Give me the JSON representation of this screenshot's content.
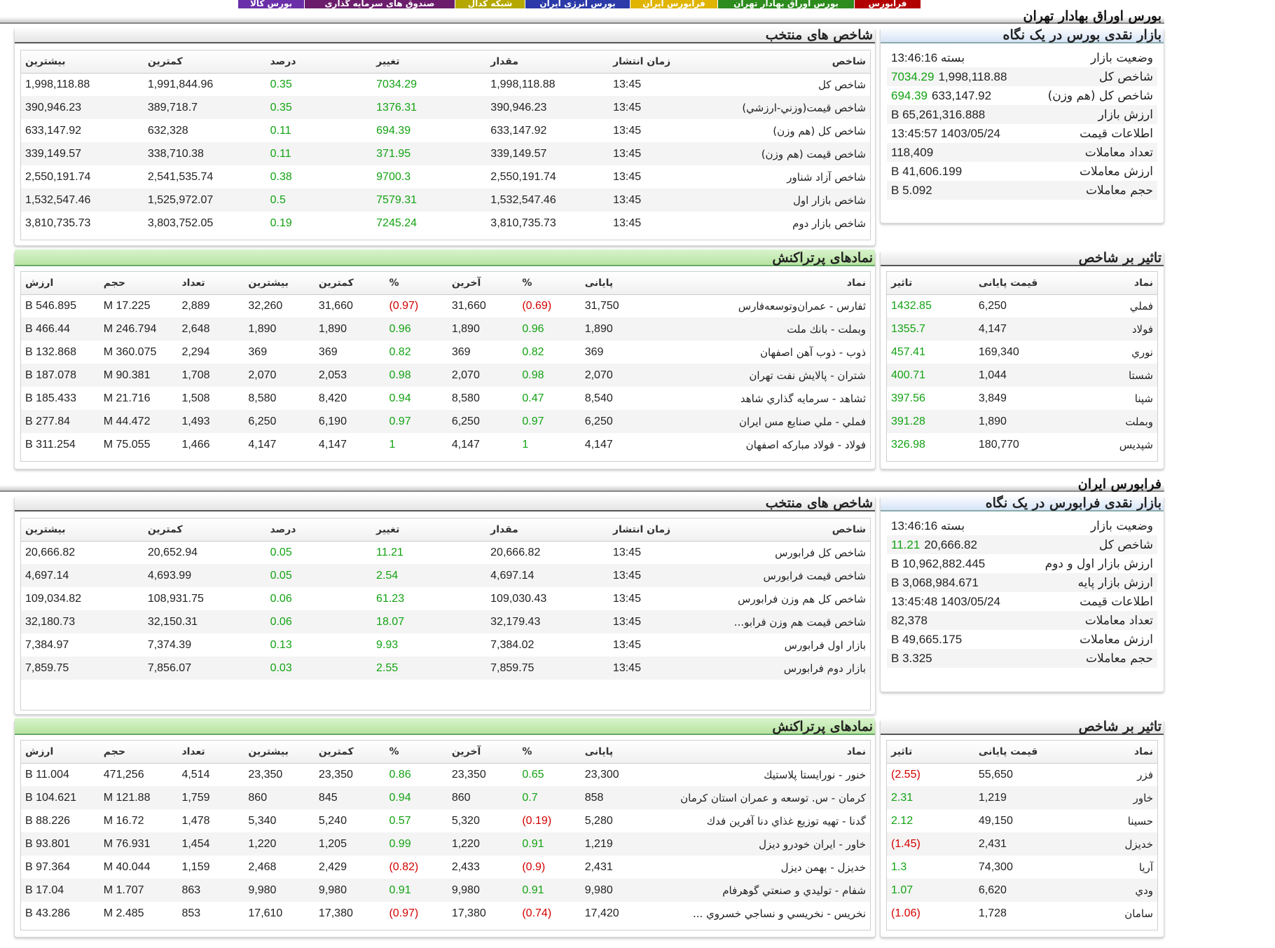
{
  "top_tabs": [
    {
      "label": "فرابورس",
      "color": "#b30000"
    },
    {
      "label": "بورس اوراق بهادار تهران",
      "color": "#2e8b1e"
    },
    {
      "label": "فرابورس ایران",
      "color": "#e0b400"
    },
    {
      "label": "بورس انرژی ایران",
      "color": "#2b3aa8"
    },
    {
      "label": "شبکه کدال",
      "color": "#b5a800"
    },
    {
      "label": "صندوق های سرمایه گذاری",
      "color": "#6b1d6b"
    },
    {
      "label": "بورس کالا",
      "color": "#6a2fa8"
    }
  ],
  "tse": {
    "title": "بورس اوراق بهادار تهران",
    "glance": {
      "title": "بازار نقدی بورس در یک نگاه",
      "rows": [
        {
          "label": "وضعیت بازار",
          "value": "بسته 13:46:16",
          "change": ""
        },
        {
          "label": "شاخص کل",
          "value": "1,998,118.88",
          "change": "7034.29"
        },
        {
          "label": "شاخص کل (هم وزن)",
          "value": "633,147.92",
          "change": "694.39"
        },
        {
          "label": "ارزش بازار",
          "value": "65,261,316.888 B",
          "change": ""
        },
        {
          "label": "اطلاعات قیمت",
          "value": "1403/05/24 13:45:57",
          "change": ""
        },
        {
          "label": "تعداد معاملات",
          "value": "118,409",
          "change": ""
        },
        {
          "label": "ارزش معاملات",
          "value": "41,606.199 B",
          "change": ""
        },
        {
          "label": "حجم معاملات",
          "value": "5.092 B",
          "change": ""
        }
      ]
    },
    "indices": {
      "title": "شاخص های منتخب",
      "headers": [
        "شاخص",
        "زمان انتشار",
        "مقدار",
        "تغییر",
        "درصد",
        "کمترین",
        "بیشترین"
      ],
      "rows": [
        [
          "شاخص کل",
          "13:45",
          "1,998,118.88",
          "7034.29",
          "0.35",
          "1,991,844.96",
          "1,998,118.88"
        ],
        [
          "شاخص قیمت(وزني-ارزشي)",
          "13:45",
          "390,946.23",
          "1376.31",
          "0.35",
          "389,718.7",
          "390,946.23"
        ],
        [
          "شاخص کل (هم وزن)",
          "13:45",
          "633,147.92",
          "694.39",
          "0.11",
          "632,328",
          "633,147.92"
        ],
        [
          "شاخص قیمت (هم وزن)",
          "13:45",
          "339,149.57",
          "371.95",
          "0.11",
          "338,710.38",
          "339,149.57"
        ],
        [
          "شاخص آزاد شناور",
          "13:45",
          "2,550,191.74",
          "9700.3",
          "0.38",
          "2,541,535.74",
          "2,550,191.74"
        ],
        [
          "شاخص بازار اول",
          "13:45",
          "1,532,547.46",
          "7579.31",
          "0.5",
          "1,525,972.07",
          "1,532,547.46"
        ],
        [
          "شاخص بازار دوم",
          "13:45",
          "3,810,735.73",
          "7245.24",
          "0.19",
          "3,803,752.05",
          "3,810,735.73"
        ]
      ]
    },
    "impact": {
      "title": "تاثیر بر شاخص",
      "headers": [
        "نماد",
        "قیمت پایانی",
        "تاثیر"
      ],
      "rows": [
        [
          "فملي",
          "6,250",
          "1432.85"
        ],
        [
          "فولاد",
          "4,147",
          "1355.7"
        ],
        [
          "نوري",
          "169,340",
          "457.41"
        ],
        [
          "شستا",
          "1,044",
          "400.71"
        ],
        [
          "شپنا",
          "3,849",
          "397.56"
        ],
        [
          "وبملت",
          "1,890",
          "391.28"
        ],
        [
          "شپديس",
          "180,770",
          "326.98"
        ]
      ]
    },
    "active": {
      "title": "نمادهای پرتراکنش",
      "headers": [
        "نماد",
        "پایانی",
        "%",
        "آخرین",
        "%",
        "کمترین",
        "بیشترین",
        "تعداد",
        "حجم",
        "ارزش"
      ],
      "rows": [
        [
          "ثفارس - عمران‌وتوسعه‌فارس",
          "31,750",
          "(0.69)",
          "31,660",
          "(0.97)",
          "31,660",
          "32,260",
          "2,889",
          "17.225 M",
          "546.895 B"
        ],
        [
          "وبملت - بانك ملت",
          "1,890",
          "0.96",
          "1,890",
          "0.96",
          "1,890",
          "1,890",
          "2,648",
          "246.794 M",
          "466.44 B"
        ],
        [
          "ذوب - ذوب آهن اصفهان",
          "369",
          "0.82",
          "369",
          "0.82",
          "369",
          "369",
          "2,294",
          "360.075 M",
          "132.868 B"
        ],
        [
          "شتران - پالايش نفت تهران",
          "2,070",
          "0.98",
          "2,070",
          "0.98",
          "2,053",
          "2,070",
          "1,708",
          "90.381 M",
          "187.078 B"
        ],
        [
          "ثشاهد - سرمايه گذاري شاهد",
          "8,540",
          "0.47",
          "8,580",
          "0.94",
          "8,420",
          "8,580",
          "1,508",
          "21.716 M",
          "185.433 B"
        ],
        [
          "فملي - ملي صنايع مس ايران",
          "6,250",
          "0.97",
          "6,250",
          "0.97",
          "6,190",
          "6,250",
          "1,493",
          "44.472 M",
          "277.84 B"
        ],
        [
          "فولاد - فولاد مباركه اصفهان",
          "4,147",
          "1",
          "4,147",
          "1",
          "4,147",
          "4,147",
          "1,466",
          "75.055 M",
          "311.254 B"
        ]
      ]
    }
  },
  "ifb": {
    "title": "فرابورس ایران",
    "glance": {
      "title": "بازار نقدی فرابورس در یک نگاه",
      "rows": [
        {
          "label": "وضعیت بازار",
          "value": "بسته 13:46:16",
          "change": ""
        },
        {
          "label": "شاخص کل",
          "value": "20,666.82",
          "change": "11.21"
        },
        {
          "label": "ارزش بازار اول و دوم",
          "value": "10,962,882.445 B",
          "change": ""
        },
        {
          "label": "ارزش بازار پایه",
          "value": "3,068,984.671 B",
          "change": ""
        },
        {
          "label": "اطلاعات قیمت",
          "value": "1403/05/24 13:45:48",
          "change": ""
        },
        {
          "label": "تعداد معاملات",
          "value": "82,378",
          "change": ""
        },
        {
          "label": "ارزش معاملات",
          "value": "49,665.175 B",
          "change": ""
        },
        {
          "label": "حجم معاملات",
          "value": "3.325 B",
          "change": ""
        }
      ]
    },
    "indices": {
      "title": "شاخص های منتخب",
      "headers": [
        "شاخص",
        "زمان انتشار",
        "مقدار",
        "تغییر",
        "درصد",
        "کمترین",
        "بیشترین"
      ],
      "rows": [
        [
          "شاخص کل فرابورس",
          "13:45",
          "20,666.82",
          "11.21",
          "0.05",
          "20,652.94",
          "20,666.82"
        ],
        [
          "شاخص قیمت فرابورس",
          "13:45",
          "4,697.14",
          "2.54",
          "0.05",
          "4,693.99",
          "4,697.14"
        ],
        [
          "شاخص کل هم وزن فرابورس",
          "13:45",
          "109,030.43",
          "61.23",
          "0.06",
          "108,931.75",
          "109,034.82"
        ],
        [
          "شاخص قیمت هم وزن فرابو...",
          "13:45",
          "32,179.43",
          "18.07",
          "0.06",
          "32,150.31",
          "32,180.73"
        ],
        [
          "بازار اول فرابورس",
          "13:45",
          "7,384.02",
          "9.93",
          "0.13",
          "7,374.39",
          "7,384.97"
        ],
        [
          "بازار دوم فرابورس",
          "13:45",
          "7,859.75",
          "2.55",
          "0.03",
          "7,856.07",
          "7,859.75"
        ]
      ]
    },
    "impact": {
      "title": "تاثیر بر شاخص",
      "headers": [
        "نماد",
        "قیمت پایانی",
        "تاثیر"
      ],
      "rows": [
        [
          "فزر",
          "55,650",
          "(2.55)"
        ],
        [
          "خاور",
          "1,219",
          "2.31"
        ],
        [
          "حسينا",
          "49,150",
          "2.12"
        ],
        [
          "خديزل",
          "2,431",
          "(1.45)"
        ],
        [
          "آريا",
          "74,300",
          "1.3"
        ],
        [
          "ودي",
          "6,620",
          "1.07"
        ],
        [
          "سامان",
          "1,728",
          "(1.06)"
        ]
      ]
    },
    "active": {
      "title": "نمادهای پرتراکنش",
      "headers": [
        "نماد",
        "پایانی",
        "%",
        "آخرین",
        "%",
        "کمترین",
        "بیشترین",
        "تعداد",
        "حجم",
        "ارزش"
      ],
      "rows": [
        [
          "خنور - نورايستا پلاستيك",
          "23,300",
          "0.65",
          "23,350",
          "0.86",
          "23,350",
          "23,350",
          "4,514",
          "471,256",
          "11.004 B"
        ],
        [
          "كرمان - س. توسعه و عمران استان كرمان",
          "858",
          "0.7",
          "860",
          "0.94",
          "845",
          "860",
          "1,759",
          "121.88 M",
          "104.621 B"
        ],
        [
          "گدنا - تهيه توزيع غذاي دنا آفرين فدك",
          "5,280",
          "(0.19)",
          "5,320",
          "0.57",
          "5,240",
          "5,340",
          "1,478",
          "16.72 M",
          "88.226 B"
        ],
        [
          "خاور - ايران خودرو ديزل",
          "1,219",
          "0.91",
          "1,220",
          "0.99",
          "1,205",
          "1,220",
          "1,454",
          "76.931 M",
          "93.801 B"
        ],
        [
          "خديزل - بهمن ديزل",
          "2,431",
          "(0.9)",
          "2,433",
          "(0.82)",
          "2,429",
          "2,468",
          "1,159",
          "40.044 M",
          "97.364 B"
        ],
        [
          "شفام - توليدي و صنعتي گوهرفام",
          "9,980",
          "0.91",
          "9,980",
          "0.91",
          "9,980",
          "9,980",
          "863",
          "1.707 M",
          "17.04 B"
        ],
        [
          "نخريس - نخريسي و نساجي خسروي ...",
          "17,420",
          "(0.74)",
          "17,380",
          "(0.97)",
          "17,380",
          "17,610",
          "853",
          "2.485 M",
          "43.286 B"
        ]
      ]
    }
  },
  "colors": {
    "positive": "#13a313",
    "negative": "#d40000"
  }
}
